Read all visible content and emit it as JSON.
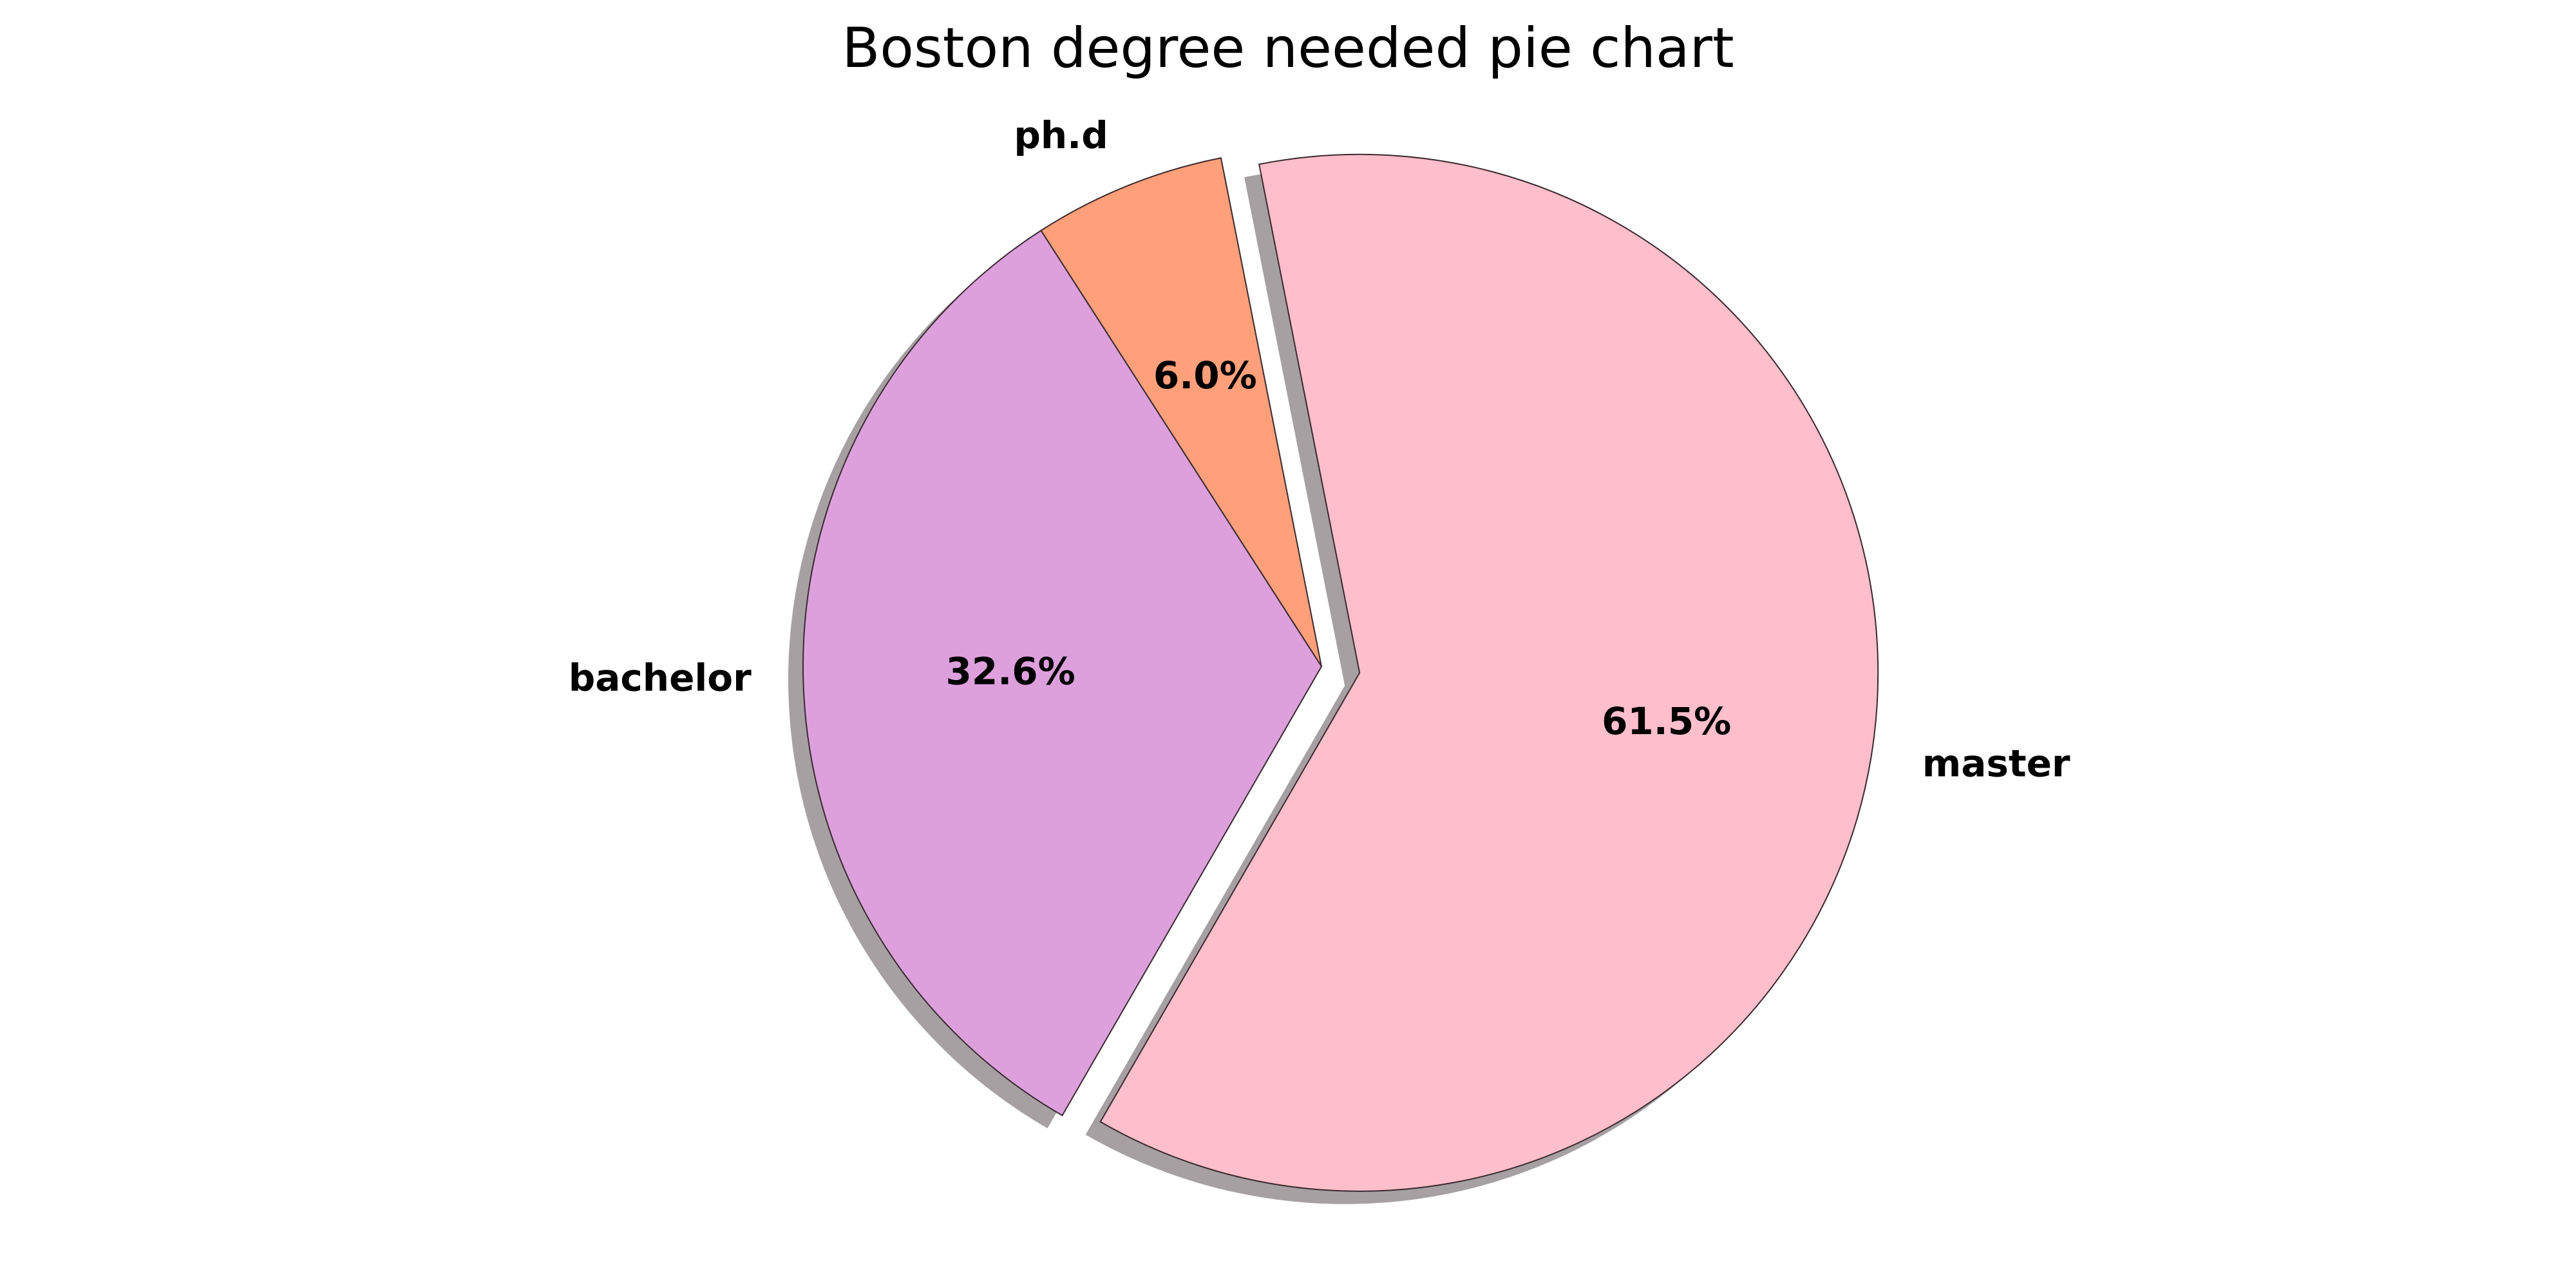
{
  "chart_data": {
    "type": "pie",
    "title": "Boston degree needed pie chart",
    "slices": [
      {
        "label": "master",
        "value": 61.5,
        "pct_label": "61.5%",
        "color": "#ffbecb",
        "exploded": true
      },
      {
        "label": "ph.d",
        "value": 6.0,
        "pct_label": "6.0%",
        "color": "#ffa07a",
        "exploded": false
      },
      {
        "label": "bachelor",
        "value": 32.6,
        "pct_label": "32.6%",
        "color": "#dda0dd",
        "exploded": false
      }
    ],
    "start_angle_deg": -120,
    "direction": "counterclockwise",
    "shadow": true,
    "shadow_color": "#a6a0a2",
    "edge_color": "#3a2a30"
  }
}
